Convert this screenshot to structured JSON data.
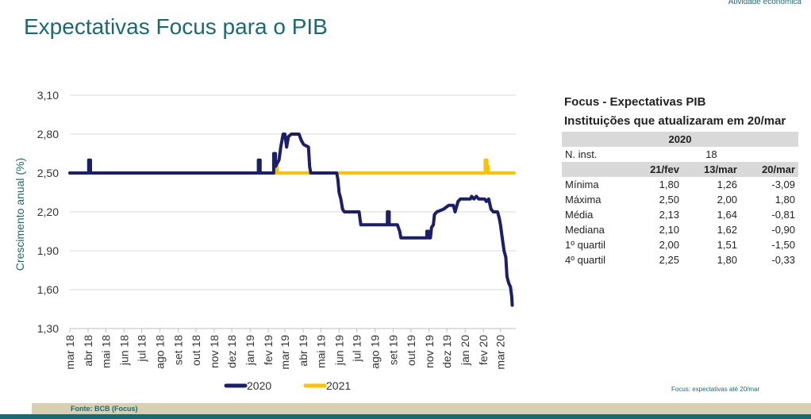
{
  "header": {
    "section": "Atividade econômica",
    "title": "Expectativas Focus para o PIB"
  },
  "chart_data": {
    "type": "line",
    "title": "",
    "ylabel": "Crescimento anual (%)",
    "xlabel": "",
    "ylim": [
      1.3,
      3.1
    ],
    "yticks": [
      "3,10",
      "2,80",
      "2,50",
      "2,20",
      "1,90",
      "1,60",
      "1,30"
    ],
    "ytick_values": [
      3.1,
      2.8,
      2.5,
      2.2,
      1.9,
      1.6,
      1.3
    ],
    "xlim": [
      "2018-03-01",
      "2020-03-27"
    ],
    "xticks": [
      {
        "label": "mar 18",
        "date": "2018-03-01"
      },
      {
        "label": "abr 18",
        "date": "2018-04-01"
      },
      {
        "label": "mai 18",
        "date": "2018-05-01"
      },
      {
        "label": "jun 18",
        "date": "2018-06-01"
      },
      {
        "label": "jul 18",
        "date": "2018-07-01"
      },
      {
        "label": "ago 18",
        "date": "2018-08-01"
      },
      {
        "label": "set 18",
        "date": "2018-09-01"
      },
      {
        "label": "out 18",
        "date": "2018-10-01"
      },
      {
        "label": "nov 18",
        "date": "2018-11-01"
      },
      {
        "label": "dez 18",
        "date": "2018-12-01"
      },
      {
        "label": "jan 19",
        "date": "2019-01-01"
      },
      {
        "label": "fev 19",
        "date": "2019-02-01"
      },
      {
        "label": "mar 19",
        "date": "2019-03-01"
      },
      {
        "label": "abr 19",
        "date": "2019-04-01"
      },
      {
        "label": "mai 19",
        "date": "2019-05-01"
      },
      {
        "label": "jun 19",
        "date": "2019-06-01"
      },
      {
        "label": "jul 19",
        "date": "2019-07-01"
      },
      {
        "label": "ago 19",
        "date": "2019-08-01"
      },
      {
        "label": "set 19",
        "date": "2019-09-01"
      },
      {
        "label": "out 19",
        "date": "2019-10-01"
      },
      {
        "label": "nov 19",
        "date": "2019-11-01"
      },
      {
        "label": "dez 19",
        "date": "2019-12-01"
      },
      {
        "label": "jan 20",
        "date": "2020-01-01"
      },
      {
        "label": "fev 20",
        "date": "2020-02-01"
      },
      {
        "label": "mar 20",
        "date": "2020-03-01"
      }
    ],
    "grid": true,
    "legend": "bottom",
    "series": [
      {
        "name": "2020",
        "color": "#1b1f6b",
        "points": [
          [
            "2018-03-01",
            2.5
          ],
          [
            "2018-04-02",
            2.5
          ],
          [
            "2018-04-02",
            2.6
          ],
          [
            "2018-04-05",
            2.6
          ],
          [
            "2018-04-05",
            2.5
          ],
          [
            "2019-01-15",
            2.5
          ],
          [
            "2019-01-15",
            2.6
          ],
          [
            "2019-01-18",
            2.6
          ],
          [
            "2019-01-18",
            2.5
          ],
          [
            "2019-02-10",
            2.5
          ],
          [
            "2019-02-10",
            2.65
          ],
          [
            "2019-02-13",
            2.65
          ],
          [
            "2019-02-13",
            2.55
          ],
          [
            "2019-02-19",
            2.6
          ],
          [
            "2019-02-22",
            2.7
          ],
          [
            "2019-02-26",
            2.8
          ],
          [
            "2019-03-01",
            2.8
          ],
          [
            "2019-03-04",
            2.7
          ],
          [
            "2019-03-07",
            2.78
          ],
          [
            "2019-03-12",
            2.8
          ],
          [
            "2019-03-25",
            2.8
          ],
          [
            "2019-03-29",
            2.75
          ],
          [
            "2019-04-02",
            2.72
          ],
          [
            "2019-04-10",
            2.7
          ],
          [
            "2019-04-12",
            2.55
          ],
          [
            "2019-04-14",
            2.5
          ],
          [
            "2019-05-28",
            2.5
          ],
          [
            "2019-05-30",
            2.45
          ],
          [
            "2019-06-01",
            2.35
          ],
          [
            "2019-06-04",
            2.3
          ],
          [
            "2019-06-07",
            2.22
          ],
          [
            "2019-06-10",
            2.2
          ],
          [
            "2019-07-05",
            2.2
          ],
          [
            "2019-07-08",
            2.1
          ],
          [
            "2019-08-22",
            2.1
          ],
          [
            "2019-08-22",
            2.2
          ],
          [
            "2019-08-25",
            2.2
          ],
          [
            "2019-08-25",
            2.1
          ],
          [
            "2019-09-08",
            2.1
          ],
          [
            "2019-09-12",
            2.05
          ],
          [
            "2019-09-14",
            2.0
          ],
          [
            "2019-10-28",
            2.0
          ],
          [
            "2019-10-28",
            2.05
          ],
          [
            "2019-10-31",
            2.05
          ],
          [
            "2019-10-31",
            2.0
          ],
          [
            "2019-11-03",
            2.0
          ],
          [
            "2019-11-05",
            2.08
          ],
          [
            "2019-11-08",
            2.1
          ],
          [
            "2019-11-10",
            2.18
          ],
          [
            "2019-11-14",
            2.2
          ],
          [
            "2019-11-25",
            2.22
          ],
          [
            "2019-12-04",
            2.25
          ],
          [
            "2019-12-12",
            2.25
          ],
          [
            "2019-12-15",
            2.2
          ],
          [
            "2019-12-20",
            2.28
          ],
          [
            "2019-12-24",
            2.3
          ],
          [
            "2020-01-10",
            2.3
          ],
          [
            "2020-01-12",
            2.32
          ],
          [
            "2020-01-16",
            2.3
          ],
          [
            "2020-01-20",
            2.32
          ],
          [
            "2020-01-24",
            2.3
          ],
          [
            "2020-02-03",
            2.3
          ],
          [
            "2020-02-06",
            2.28
          ],
          [
            "2020-02-10",
            2.3
          ],
          [
            "2020-02-14",
            2.22
          ],
          [
            "2020-02-18",
            2.2
          ],
          [
            "2020-02-25",
            2.2
          ],
          [
            "2020-02-28",
            2.15
          ],
          [
            "2020-03-01",
            2.1
          ],
          [
            "2020-03-04",
            2.0
          ],
          [
            "2020-03-07",
            1.9
          ],
          [
            "2020-03-10",
            1.85
          ],
          [
            "2020-03-12",
            1.7
          ],
          [
            "2020-03-15",
            1.65
          ],
          [
            "2020-03-18",
            1.62
          ],
          [
            "2020-03-20",
            1.55
          ],
          [
            "2020-03-21",
            1.48
          ]
        ]
      },
      {
        "name": "2021",
        "color": "#ffc000",
        "points": [
          [
            "2018-03-01",
            2.5
          ],
          [
            "2019-02-14",
            2.5
          ],
          [
            "2019-02-14",
            2.55
          ],
          [
            "2019-02-16",
            2.55
          ],
          [
            "2019-02-16",
            2.5
          ],
          [
            "2020-02-04",
            2.5
          ],
          [
            "2020-02-04",
            2.6
          ],
          [
            "2020-02-07",
            2.6
          ],
          [
            "2020-02-07",
            2.55
          ],
          [
            "2020-02-09",
            2.55
          ],
          [
            "2020-02-09",
            2.5
          ],
          [
            "2020-03-24",
            2.5
          ]
        ]
      }
    ]
  },
  "panel": {
    "title1": "Focus - Expectativas PIB",
    "title2": "Instituições que atualizaram em 20/mar",
    "year": "2020",
    "ninst_label": "N. inst.",
    "ninst_value": "18",
    "col_headers": [
      "21/fev",
      "13/mar",
      "20/mar"
    ],
    "rows": [
      {
        "label": "Mínima",
        "values": [
          "1,80",
          "1,26",
          "-3,09"
        ]
      },
      {
        "label": "Máxima",
        "values": [
          "2,50",
          "2,00",
          "1,80"
        ]
      },
      {
        "label": "Média",
        "values": [
          "2,13",
          "1,64",
          "-0,81"
        ]
      },
      {
        "label": "Mediana",
        "values": [
          "2,10",
          "1,62",
          "-0,90"
        ]
      },
      {
        "label": "1º quartil",
        "values": [
          "2,00",
          "1,51",
          "-1,50"
        ]
      },
      {
        "label": "4º quartil",
        "values": [
          "2,25",
          "1,80",
          "-0,33"
        ]
      }
    ]
  },
  "note": "Focus: expectativas até 20/mar",
  "footer": {
    "source": "Fonte: BCB (Focus)"
  }
}
